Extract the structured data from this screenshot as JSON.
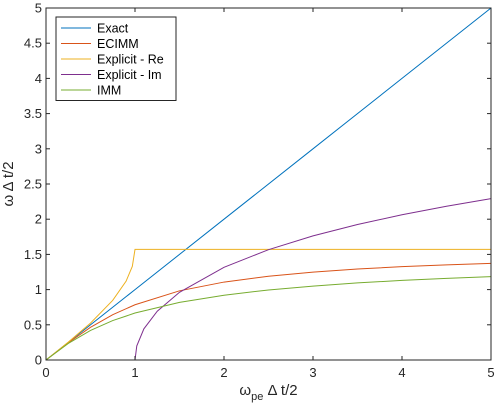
{
  "chart_data": {
    "type": "line",
    "xlabel": {
      "main": "ω",
      "sub": "pe",
      "rest": " Δ t/2"
    },
    "ylabel": "ω Δ t/2",
    "xlim": [
      0,
      5
    ],
    "ylim": [
      0,
      5
    ],
    "xticks": [
      0,
      1,
      2,
      3,
      4,
      5
    ],
    "xtick_labels": [
      "0",
      "1",
      "2",
      "3",
      "4",
      "5"
    ],
    "yticks": [
      0,
      0.5,
      1,
      1.5,
      2,
      2.5,
      3,
      3.5,
      4,
      4.5,
      5
    ],
    "ytick_labels": [
      "0",
      "0.5",
      "1",
      "1.5",
      "2",
      "2.5",
      "3",
      "3.5",
      "4",
      "4.5",
      "5"
    ],
    "grid": false,
    "legend_position": "top-left",
    "colors": {
      "Exact": "#0072BD",
      "ECIMM": "#D95319",
      "Explicit - Re": "#EDB120",
      "Explicit - Im": "#7E2F8E",
      "IMM": "#77AC30"
    },
    "series": [
      {
        "name": "Exact",
        "x": [
          0,
          1,
          2,
          3,
          4,
          5
        ],
        "y": [
          0,
          1,
          2,
          3,
          4,
          5
        ]
      },
      {
        "name": "ECIMM",
        "x": [
          0,
          0.25,
          0.5,
          0.75,
          1,
          1.5,
          2,
          2.5,
          3,
          3.5,
          4,
          4.5,
          5
        ],
        "y": [
          0,
          0.245,
          0.464,
          0.644,
          0.785,
          0.983,
          1.107,
          1.19,
          1.249,
          1.292,
          1.326,
          1.352,
          1.373
        ]
      },
      {
        "name": "Explicit - Re",
        "x": [
          0,
          0.25,
          0.5,
          0.75,
          0.9,
          0.97,
          1,
          1.5,
          2,
          3,
          4,
          5
        ],
        "y": [
          0,
          0.253,
          0.524,
          0.848,
          1.12,
          1.33,
          1.571,
          1.571,
          1.571,
          1.571,
          1.571,
          1.571
        ]
      },
      {
        "name": "Explicit - Im",
        "x": [
          0,
          1,
          1.02,
          1.1,
          1.25,
          1.5,
          2,
          2.5,
          3,
          3.5,
          4,
          4.5,
          5
        ],
        "y": [
          0,
          0,
          0.2,
          0.443,
          0.693,
          0.962,
          1.317,
          1.567,
          1.763,
          1.925,
          2.063,
          2.184,
          2.292
        ]
      },
      {
        "name": "IMM",
        "x": [
          0,
          0.25,
          0.5,
          0.75,
          1,
          1.5,
          2,
          2.5,
          3,
          3.5,
          4,
          4.5,
          5
        ],
        "y": [
          0,
          0.235,
          0.42,
          0.56,
          0.667,
          0.818,
          0.92,
          0.995,
          1.05,
          1.095,
          1.131,
          1.16,
          1.185
        ]
      }
    ]
  }
}
